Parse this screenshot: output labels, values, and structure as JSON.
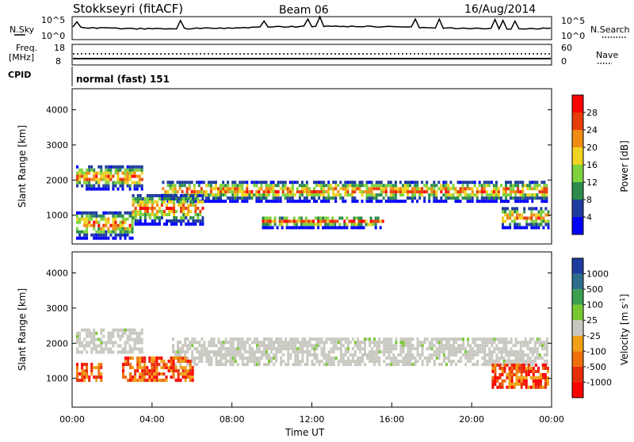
{
  "header": {
    "station": "Stokkseyri (fitACF)",
    "beam": "Beam 06",
    "date": "16/Aug/2014"
  },
  "side_labels": {
    "nsky": "N.Sky",
    "freq": "Freq.",
    "freq_unit": "[MHz]",
    "cpid": "CPID",
    "nsearch": "N.Search",
    "nave": "Nave"
  },
  "small_axes": {
    "noise_left_top": "10^5",
    "noise_left_bottom": "10^0",
    "noise_right_top": "10^5",
    "noise_right_bottom": "10^0",
    "freq_left_top": "18",
    "freq_left_bottom": "8",
    "nave_right_top": "60",
    "nave_right_bottom": "0"
  },
  "cpid_text": "normal (fast) 151",
  "colors": {
    "background": "#ffffff",
    "ground_scatter": "#c8c8c0"
  },
  "chart_data": [
    {
      "type": "heatmap",
      "panel": "power",
      "ylabel": "Slant Range [km]",
      "xlabel": "",
      "y_ticks": [
        "1000",
        "2000",
        "3000",
        "4000"
      ],
      "ylim": [
        180,
        4600
      ],
      "xlim": [
        0,
        24
      ],
      "colorbar": {
        "label": "Power [dB]",
        "ticks": [
          "4",
          "8",
          "12",
          "16",
          "20",
          "24",
          "28"
        ],
        "colors": [
          "#0000ff",
          "#1e3ca0",
          "#2d8c4b",
          "#7ed23c",
          "#f0d220",
          "#f08c14",
          "#e63c0a",
          "#ff0000"
        ]
      },
      "echo_bands": [
        {
          "t0": 0.2,
          "t1": 3.5,
          "r0": 1700,
          "r1": 2400
        },
        {
          "t0": 4.5,
          "t1": 23.8,
          "r0": 1350,
          "r1": 1950
        },
        {
          "t0": 0.2,
          "t1": 3.0,
          "r0": 300,
          "r1": 1100
        },
        {
          "t0": 3.0,
          "t1": 6.5,
          "r0": 700,
          "r1": 1600
        },
        {
          "t0": 9.5,
          "t1": 15.5,
          "r0": 600,
          "r1": 950
        },
        {
          "t0": 21.5,
          "t1": 23.8,
          "r0": 600,
          "r1": 1200
        }
      ]
    },
    {
      "type": "heatmap",
      "panel": "velocity",
      "ylabel": "Slant Range [km]",
      "xlabel": "Time UT",
      "x_ticks": [
        "00:00",
        "04:00",
        "08:00",
        "12:00",
        "16:00",
        "20:00",
        "00:00"
      ],
      "y_ticks": [
        "1000",
        "2000",
        "3000",
        "4000"
      ],
      "ylim": [
        180,
        4600
      ],
      "xlim": [
        0,
        24
      ],
      "colorbar": {
        "label": "Velocity [m s-1]",
        "ticks": [
          "1000",
          "500",
          "100",
          "25",
          "-25",
          "-100",
          "-500",
          "-1000"
        ],
        "colors": [
          "#1e3ca0",
          "#2d6e8c",
          "#3ca050",
          "#78c832",
          "#c8c8c0",
          "#f0a014",
          "#f06e0a",
          "#e62d0a",
          "#ff0000"
        ]
      },
      "echo_bands": [
        {
          "t0": 0.2,
          "t1": 3.5,
          "r0": 1700,
          "r1": 2400
        },
        {
          "t0": 5.0,
          "t1": 23.8,
          "r0": 1350,
          "r1": 2150
        },
        {
          "t0": 0.2,
          "t1": 1.5,
          "r0": 900,
          "r1": 1400
        },
        {
          "t0": 2.5,
          "t1": 6.0,
          "r0": 900,
          "r1": 1600
        },
        {
          "t0": 21.0,
          "t1": 23.8,
          "r0": 700,
          "r1": 1400
        }
      ]
    }
  ]
}
